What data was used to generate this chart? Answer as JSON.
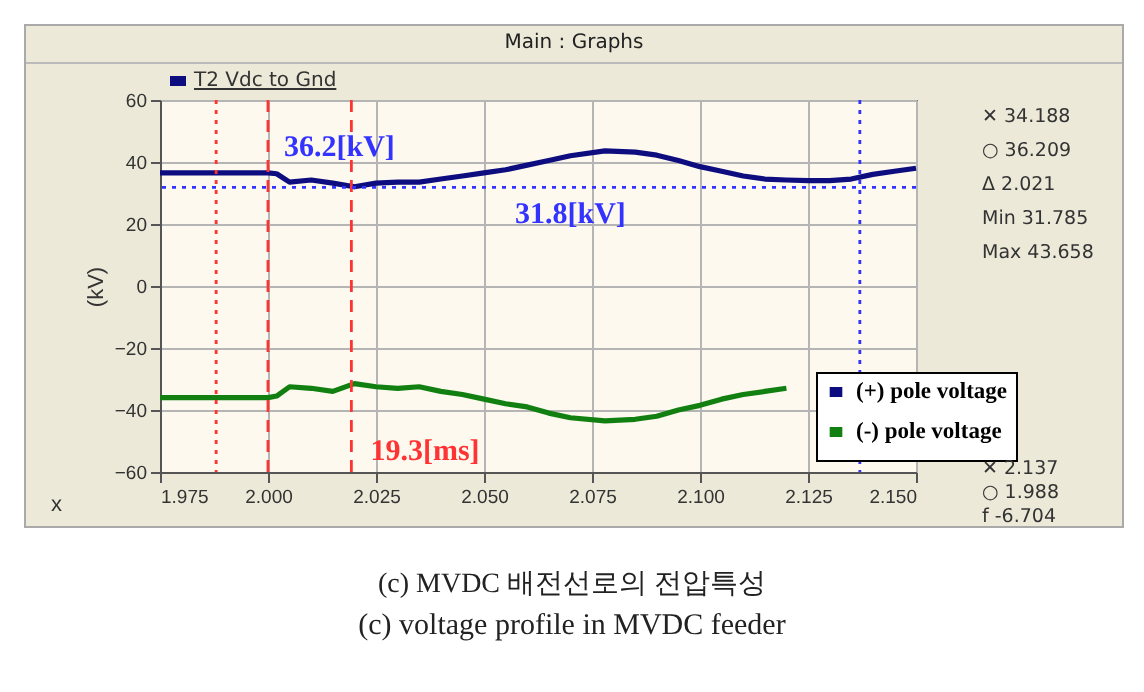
{
  "chart_data": {
    "type": "line",
    "title": "Main : Graphs",
    "xlabel": "x",
    "ylabel": "(kV)",
    "annotations": [
      {
        "text": "36.2[kV]",
        "x": 2.0,
        "y": 36.2
      },
      {
        "text": "31.8[kV]",
        "x": 2.07,
        "y": 31.8
      },
      {
        "text": "19.3[ms]",
        "x": 2.02,
        "y": -53
      },
      "T2 Vdc to Gnd",
      "✕ 34.188",
      "○ 36.209",
      "Δ 2.021",
      "Min 31.785",
      "Max 43.658",
      "✕ 2.137",
      "○ 1.988",
      "f -6.704",
      "(c) MVDC 배전선로의 전압특성",
      "(c) voltage profile in MVDC feeder"
    ],
    "x": [
      1.975,
      1.99,
      2.0,
      2.002,
      2.005,
      2.01,
      2.015,
      2.02,
      2.025,
      2.03,
      2.035,
      2.04,
      2.045,
      2.05,
      2.055,
      2.06,
      2.065,
      2.07,
      2.078,
      2.085,
      2.09,
      2.095,
      2.1,
      2.105,
      2.11,
      2.115,
      2.12,
      2.125,
      2.13,
      2.135,
      2.14,
      2.145,
      2.15
    ],
    "series": [
      {
        "name": "(+) pole voltage",
        "color": "#0d0d80",
        "values": [
          36.5,
          36.5,
          36.5,
          36.2,
          33.5,
          34.2,
          33.2,
          32,
          33.2,
          33.5,
          33.5,
          34.5,
          35.5,
          36.5,
          37.5,
          39,
          40.5,
          42,
          43.6,
          43.2,
          42.2,
          40.5,
          38.5,
          37,
          35.5,
          34.5,
          34.2,
          34,
          34,
          34.5,
          36,
          37,
          38
        ]
      },
      {
        "name": "(-) pole voltage",
        "color": "#118011",
        "values": [
          -36,
          -36,
          -36,
          -35.5,
          -32.5,
          -33,
          -34,
          -31.5,
          -32.5,
          -33,
          -32.5,
          -34,
          -35,
          -36.5,
          -38,
          -39,
          -41,
          -42.5,
          -43.5,
          -43,
          -42,
          -40,
          -38.5,
          -36.5,
          -35,
          -34,
          -33,
          null,
          null,
          null,
          null,
          null,
          null
        ]
      }
    ],
    "xlim": [
      1.975,
      2.15
    ],
    "xticks": [
      1.975,
      {
        "value": 2.0,
        "label": "2.000"
      },
      2.025,
      {
        "value": 2.05,
        "label": "2.050"
      },
      2.075,
      {
        "value": 2.1,
        "label": "2.100"
      },
      2.125,
      {
        "value": 2.15,
        "label": "2.150"
      }
    ],
    "ylim": [
      -60,
      60
    ],
    "yticks": [
      -60,
      -40,
      -20,
      0,
      20,
      40,
      60
    ],
    "ref_lines": [
      {
        "axis": "x",
        "value": 1.988,
        "color": "#ff3333",
        "line_style": "dotted"
      },
      {
        "axis": "x",
        "value": 2.0,
        "color": "#ff3333",
        "line_style": "dashed"
      },
      {
        "axis": "x",
        "value": 2.0193,
        "color": "#ff3333",
        "line_style": "dashed"
      },
      {
        "axis": "x",
        "value": 2.137,
        "color": "#3333ff",
        "line_style": "dotted"
      },
      {
        "axis": "y",
        "value": 31.8,
        "color": "#3333ff",
        "line_style": "dotted"
      }
    ],
    "grid": true,
    "legend": "bottom right",
    "line_style": "solid",
    "marker": "none"
  }
}
